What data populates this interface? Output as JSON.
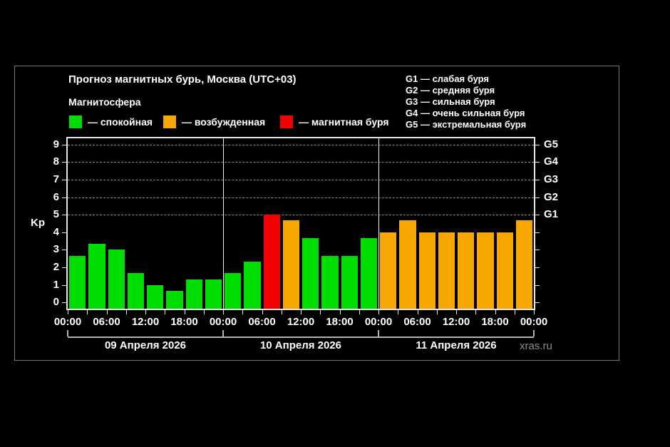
{
  "title": "Прогноз магнитных бурь, Москва (UTC+03)",
  "legend": {
    "title": "Магнитосфера",
    "items": [
      {
        "name": "quiet",
        "label": "— спокойная",
        "color": "#00dd00"
      },
      {
        "name": "excited",
        "label": "— возбужденная",
        "color": "#f7a800"
      },
      {
        "name": "storm",
        "label": "— магнитная буря",
        "color": "#f20000"
      }
    ]
  },
  "storm_scale": [
    "G1 — слабая буря",
    "G2 — средняя буря",
    "G3 — сильная буря",
    "G4 — очень сильная буря",
    "G5 — экстремальная буря"
  ],
  "watermark": "xras.ru",
  "chart_data": {
    "type": "bar",
    "title": "Прогноз магнитных бурь, Москва (UTC+03)",
    "xlabel": "",
    "ylabel": "Kp",
    "ylim": [
      -0.35,
      9.35
    ],
    "yticks": [
      0,
      1,
      2,
      3,
      4,
      5,
      6,
      7,
      8,
      9
    ],
    "gridlines": [
      5,
      6,
      7,
      8,
      9
    ],
    "grid": "dashed horizontal at G-levels only",
    "legend_position": "above-plot-left",
    "hours_per_bar": 3,
    "right_axis_labels": [
      {
        "kp": 5,
        "label": "G1"
      },
      {
        "kp": 6,
        "label": "G2"
      },
      {
        "kp": 7,
        "label": "G3"
      },
      {
        "kp": 8,
        "label": "G4"
      },
      {
        "kp": 9,
        "label": "G5"
      }
    ],
    "x_tick_labels": [
      "00:00",
      "06:00",
      "12:00",
      "18:00",
      "00:00",
      "06:00",
      "12:00",
      "18:00",
      "00:00",
      "06:00",
      "12:00",
      "18:00",
      "00:00"
    ],
    "colors": {
      "green": "#00dd00",
      "orange": "#f7a800",
      "red": "#f20000"
    },
    "days": [
      {
        "date": "09 Апреля 2026",
        "values": [
          2.67,
          3.33,
          3.0,
          1.67,
          1.0,
          0.67,
          1.33,
          1.33
        ],
        "colors": [
          "green",
          "green",
          "green",
          "green",
          "green",
          "green",
          "green",
          "green"
        ]
      },
      {
        "date": "10 Апреля 2026",
        "values": [
          1.67,
          2.33,
          5.0,
          4.67,
          3.67,
          2.67,
          2.67,
          3.67
        ],
        "colors": [
          "green",
          "green",
          "red",
          "orange",
          "green",
          "green",
          "green",
          "green"
        ]
      },
      {
        "date": "11 Апреля 2026",
        "values": [
          4.0,
          4.67,
          4.0,
          4.0,
          4.0,
          4.0,
          4.0,
          4.67
        ],
        "colors": [
          "orange",
          "orange",
          "orange",
          "orange",
          "orange",
          "orange",
          "orange",
          "orange"
        ]
      }
    ]
  }
}
